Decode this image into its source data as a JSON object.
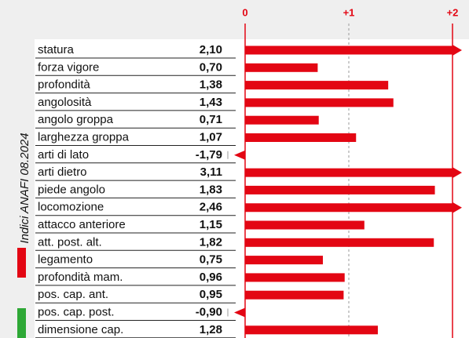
{
  "chart_data": {
    "type": "bar",
    "orientation": "horizontal",
    "caption": "Indici ANAFI 08.2024",
    "categories": [
      "statura",
      "forza vigore",
      "profondità",
      "angolosità",
      "angolo groppa",
      "larghezza groppa",
      "arti di lato",
      "arti dietro",
      "piede angolo",
      "locomozione",
      "attacco anteriore",
      "att. post. alt.",
      "legamento",
      "profondità mam.",
      "pos. cap. ant.",
      "pos. cap. post.",
      "dimensione cap."
    ],
    "values": [
      2.1,
      0.7,
      1.38,
      1.43,
      0.71,
      1.07,
      -1.79,
      3.11,
      1.83,
      2.46,
      1.15,
      1.82,
      0.75,
      0.96,
      0.95,
      -0.9,
      1.28
    ],
    "value_labels": [
      "2,10",
      "0,70",
      "1,38",
      "1,43",
      "0,71",
      "1,07",
      "-1,79",
      "3,11",
      "1,83",
      "2,46",
      "1,15",
      "1,82",
      "0,75",
      "0,96",
      "0,95",
      "-0,90",
      "1,28"
    ],
    "color": "#e30613",
    "xlim": [
      0,
      2
    ],
    "xticks": [
      0,
      {
        "value": 1,
        "label": "+1"
      },
      {
        "value": 2,
        "label": "+2"
      }
    ]
  }
}
